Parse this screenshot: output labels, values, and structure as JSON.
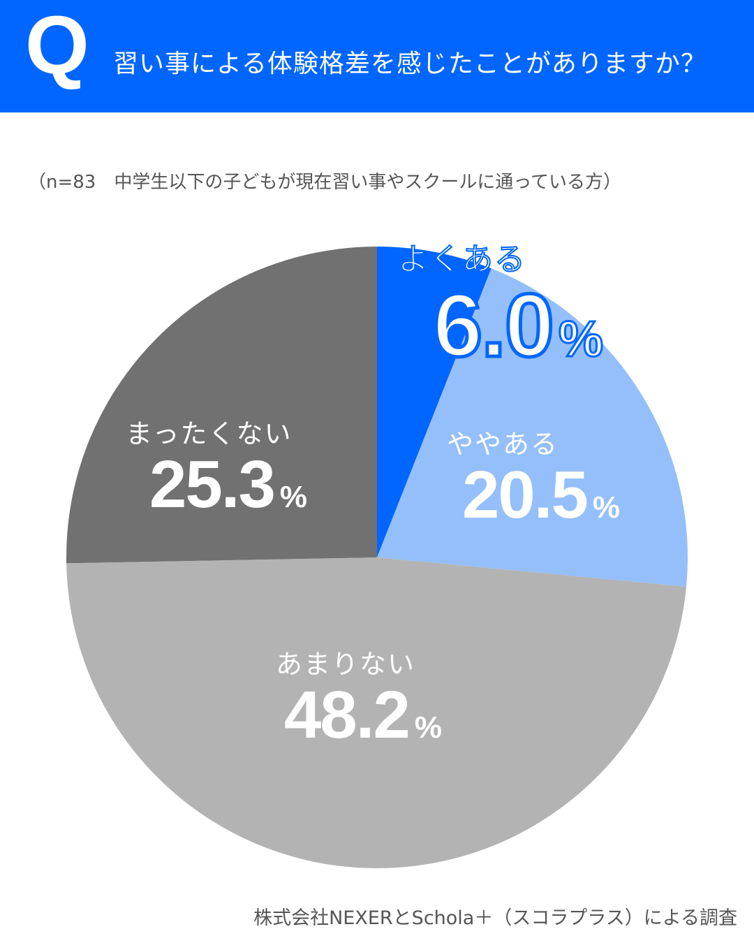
{
  "header": {
    "q_letter": "Q",
    "question": "習い事による体験格差を感じたことがありますか？",
    "subtitle": "（n=83　中学生以下の子どもが現在習い事やスクールに通っている方）",
    "banner_color": "#0066ff"
  },
  "labels": [
    {
      "name": "よくある",
      "value": "6.0",
      "pct": "%"
    },
    {
      "name": "ややある",
      "value": "20.5",
      "pct": "%"
    },
    {
      "name": "あまりない",
      "value": "48.2",
      "pct": "%"
    },
    {
      "name": "まったくない",
      "value": "25.3",
      "pct": "%"
    }
  ],
  "footer": {
    "source": "株式会社NEXERとSchola＋（スコラプラス）による調査"
  },
  "chart_data": {
    "type": "pie",
    "title": "習い事による体験格差を感じたことがありますか？",
    "subtitle": "（n=83　中学生以下の子どもが現在習い事やスクールに通っている方）",
    "categories": [
      "よくある",
      "ややある",
      "あまりない",
      "まったくない"
    ],
    "values": [
      6.0,
      20.5,
      48.2,
      25.3
    ],
    "unit": "%",
    "colors": [
      "#0066ff",
      "#94bffa",
      "#b3b3b3",
      "#717171"
    ],
    "start_angle": "12 o'clock, clockwise",
    "n": 83,
    "legend": "none (labels inside slices)"
  }
}
